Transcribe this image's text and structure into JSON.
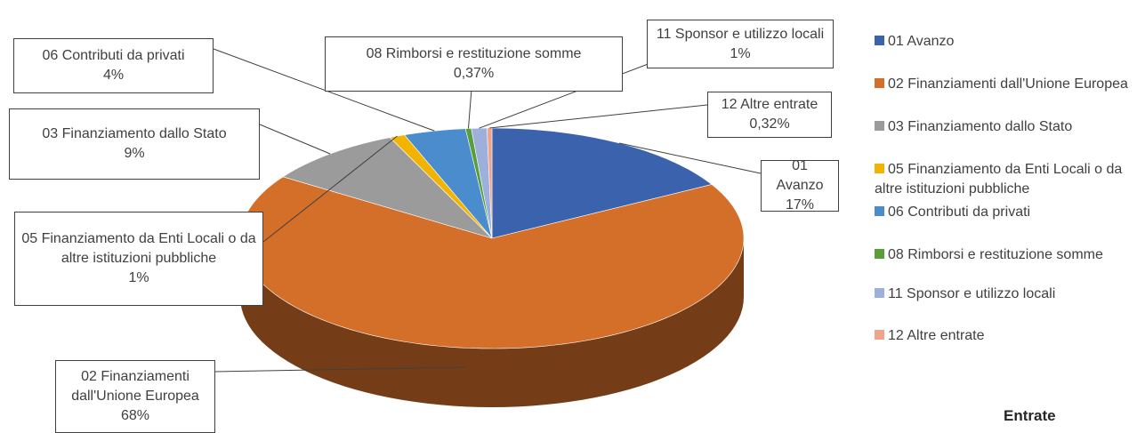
{
  "chart_data": {
    "type": "pie3d",
    "title": "Entrate",
    "categories": [
      "01 Avanzo",
      "02 Finanziamenti dall'Unione Europea",
      "03 Finanziamento dallo Stato",
      "05 Finanziamento da Enti Locali o da altre istituzioni pubbliche",
      "06 Contributi da privati",
      "08 Rimborsi e restituzione somme",
      "11 Sponsor e utilizzo locali",
      "12 Altre entrate"
    ],
    "values": [
      17,
      68,
      9,
      1,
      4,
      0.37,
      1,
      0.32
    ],
    "value_labels": [
      "17%",
      "68%",
      "9%",
      "1%",
      "4%",
      "0,37%",
      "1%",
      "0,32%"
    ],
    "colors": [
      "#3a62ad",
      "#d46f2a",
      "#9b9b9b",
      "#f2b400",
      "#4a8ccc",
      "#5a9e3c",
      "#9db0dc",
      "#f2a38c"
    ],
    "legend": "right"
  }
}
